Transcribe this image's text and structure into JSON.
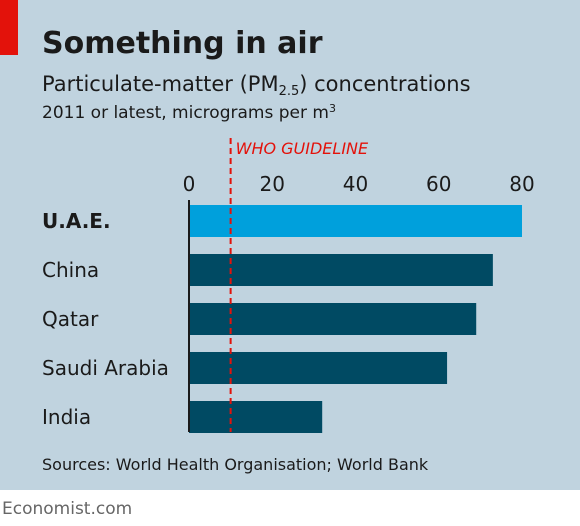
{
  "header": {
    "title": "Something in air",
    "subtitle_main": "Particulate-matter (PM",
    "subtitle_sub": "2.5",
    "subtitle_end": ") concentrations",
    "subtitle2_main": "2011 or latest, micrograms per m",
    "subtitle2_sup": "3"
  },
  "footer": {
    "source": "Sources: World Health Organisation; World Bank",
    "brand": "Economist.com"
  },
  "colors": {
    "background": "#c0d3df",
    "highlight_bar": "#00a0dc",
    "bar": "#004a63",
    "reference_line": "#e3120b",
    "brand_tab": "#e3120b"
  },
  "chart_data": {
    "type": "bar",
    "orientation": "horizontal",
    "categories": [
      "U.A.E.",
      "China",
      "Qatar",
      "Saudi Arabia",
      "India"
    ],
    "values": [
      80,
      73,
      69,
      62,
      32
    ],
    "highlight": "U.A.E.",
    "xlim": [
      0,
      80
    ],
    "xticks": [
      0,
      20,
      40,
      60,
      80
    ],
    "reference_line": {
      "value": 10,
      "label": "WHO GUIDELINE"
    },
    "grid": false
  }
}
